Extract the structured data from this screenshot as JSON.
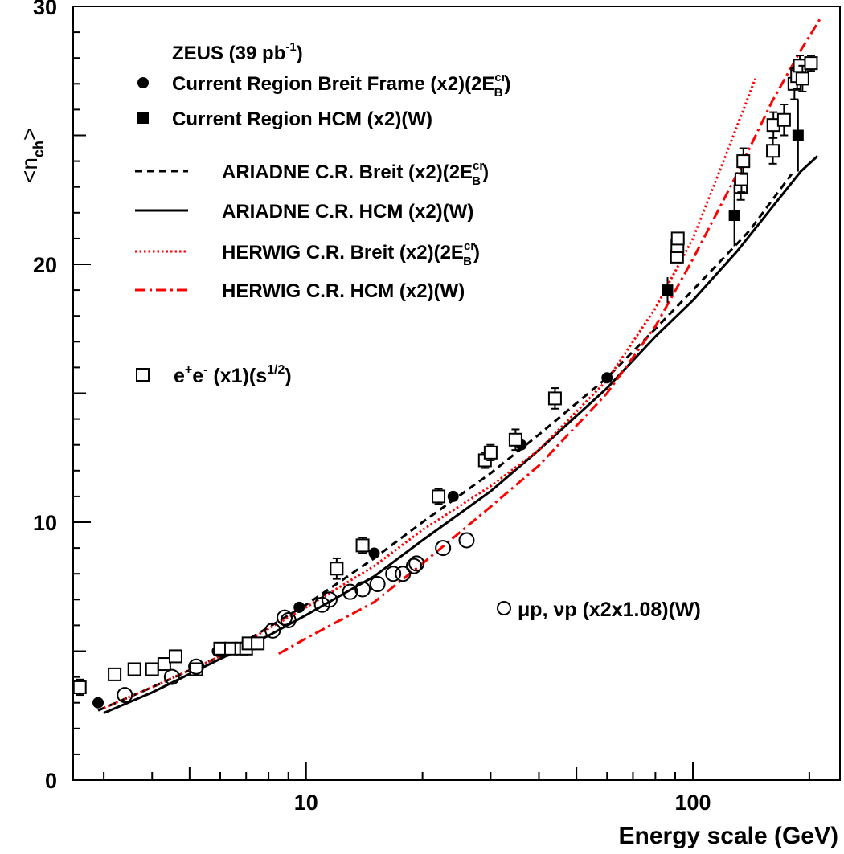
{
  "chart_data": {
    "type": "scatter",
    "title": "",
    "xlabel": "Energy scale (GeV)",
    "ylabel": "<n_ch>",
    "x_scale": "log",
    "xlim": [
      2.5,
      240
    ],
    "ylim": [
      0,
      30
    ],
    "x_ticks": [
      10,
      100
    ],
    "y_ticks": [
      0,
      10,
      20,
      30
    ],
    "grid": false,
    "legend_placement": "top-left",
    "experiment_label": {
      "main": "ZEUS (39 pb",
      "sup": "-1",
      "end": ")"
    },
    "legend": [
      {
        "key": "breit",
        "marker": "filled-circle",
        "main": "Current Region Breit Frame (x2)(2E",
        "sup": "cr",
        "sub": "B",
        "end": ")"
      },
      {
        "key": "hcm",
        "marker": "filled-square",
        "main": "Current Region HCM (x2)(W)",
        "sup": "",
        "sub": "",
        "end": ""
      },
      {
        "key": "ariadne_breit",
        "marker": "dashed-black",
        "main": "ARIADNE C.R. Breit (x2)(2E",
        "sup": "cr",
        "sub": "B",
        "end": ")"
      },
      {
        "key": "ariadne_hcm",
        "marker": "solid-black",
        "main": "ARIADNE C.R. HCM (x2)(W)",
        "sup": "",
        "sub": "",
        "end": ""
      },
      {
        "key": "herwig_breit",
        "marker": "dotted-red",
        "main": "HERWIG C.R. Breit (x2)(2E",
        "sup": "cr",
        "sub": "B",
        "end": ")"
      },
      {
        "key": "herwig_hcm",
        "marker": "dashdot-red",
        "main": "HERWIG C.R. HCM (x2)(W)",
        "sup": "",
        "sub": "",
        "end": ""
      }
    ],
    "ee_legend": {
      "p1": "e",
      "s1": "+",
      "p2": "e",
      "s2": "-",
      "p3": " (x1)(s",
      "s3": "1/2",
      "p4": ")"
    },
    "mu_legend": "μp, νp (x2x1.08)(W)",
    "colors": {
      "axis": "#000000",
      "data": "#000000",
      "herwig": "#ff0000"
    },
    "series": [
      {
        "key": "breit",
        "name": "Current Region Breit Frame (x2)(2E_B^cr)",
        "marker": "filled-circle",
        "points": [
          [
            2.9,
            3.0
          ],
          [
            5.9,
            5.0
          ],
          [
            9.6,
            6.7
          ],
          [
            15.0,
            8.8
          ],
          [
            24.0,
            11.0
          ],
          [
            36.0,
            13.0
          ],
          [
            60.0,
            15.6
          ]
        ],
        "errors": [
          0.1,
          0.1,
          0.1,
          0.15,
          0.15,
          0.2,
          0.15
        ]
      },
      {
        "key": "hcm",
        "name": "Current Region HCM (x2)(W)",
        "marker": "filled-square",
        "points": [
          [
            6.1,
            5.0
          ],
          [
            86.0,
            19.0
          ],
          [
            128.0,
            21.9
          ],
          [
            187.0,
            25.0
          ]
        ],
        "errors": [
          0.1,
          0.5,
          1.2,
          1.4
        ]
      },
      {
        "key": "ee",
        "name": "e+e- (x1)(s1/2)",
        "marker": "open-square",
        "points": [
          [
            2.6,
            3.6
          ],
          [
            3.2,
            4.1
          ],
          [
            3.6,
            4.3
          ],
          [
            4.0,
            4.3
          ],
          [
            4.3,
            4.5
          ],
          [
            4.6,
            4.8
          ],
          [
            5.2,
            4.3
          ],
          [
            6.0,
            5.1
          ],
          [
            6.4,
            5.1
          ],
          [
            6.8,
            5.1
          ],
          [
            7.0,
            5.1
          ],
          [
            7.1,
            5.3
          ],
          [
            7.5,
            5.3
          ],
          [
            12.0,
            8.2
          ],
          [
            14.0,
            9.1
          ],
          [
            22.0,
            11.0
          ],
          [
            29.0,
            12.4
          ],
          [
            30.0,
            12.7
          ],
          [
            34.8,
            13.2
          ],
          [
            44.0,
            14.8
          ],
          [
            91.0,
            20.3
          ],
          [
            91.2,
            20.7
          ],
          [
            91.4,
            21.0
          ],
          [
            133.0,
            23.0
          ],
          [
            133.5,
            23.3
          ],
          [
            135.0,
            24.0
          ],
          [
            161.0,
            24.4
          ],
          [
            161.5,
            25.4
          ],
          [
            172.0,
            25.6
          ],
          [
            183.0,
            27.0
          ],
          [
            186.0,
            27.3
          ],
          [
            189.0,
            27.7
          ],
          [
            192.0,
            27.2
          ],
          [
            202.0,
            27.8
          ]
        ],
        "errors": [
          0.3,
          0.1,
          0.1,
          0.1,
          0.1,
          0.2,
          0.1,
          0.1,
          0.1,
          0.1,
          0.1,
          0.1,
          0.1,
          0.4,
          0.3,
          0.3,
          0.3,
          0.3,
          0.4,
          0.4,
          0.2,
          0.2,
          0.2,
          0.5,
          0.5,
          0.5,
          0.5,
          0.5,
          0.6,
          0.6,
          0.5,
          0.4,
          0.5,
          0.3
        ]
      },
      {
        "key": "mup",
        "name": "μp, νp (x2x1.08)(W)",
        "marker": "open-circle",
        "points": [
          [
            3.4,
            3.3
          ],
          [
            4.5,
            4.0
          ],
          [
            5.2,
            4.4
          ],
          [
            8.2,
            5.8
          ],
          [
            8.8,
            6.3
          ],
          [
            9.0,
            6.2
          ],
          [
            11.0,
            6.8
          ],
          [
            11.5,
            7.0
          ],
          [
            13.0,
            7.3
          ],
          [
            14.0,
            7.4
          ],
          [
            15.3,
            7.6
          ],
          [
            16.8,
            8.0
          ],
          [
            17.8,
            8.0
          ],
          [
            19.0,
            8.3
          ],
          [
            19.3,
            8.4
          ],
          [
            22.6,
            9.0
          ],
          [
            26.0,
            9.3
          ]
        ]
      }
    ],
    "curves": [
      {
        "key": "ariadne_breit",
        "name": "ARIADNE C.R. Breit (x2)(2E_B^cr)",
        "style": "dashed",
        "color": "#000000",
        "points": [
          [
            2.9,
            2.7
          ],
          [
            4.0,
            3.6
          ],
          [
            6.0,
            4.8
          ],
          [
            10.0,
            6.8
          ],
          [
            15.0,
            8.6
          ],
          [
            20.0,
            10.0
          ],
          [
            30.0,
            11.9
          ],
          [
            40.0,
            13.4
          ],
          [
            60.0,
            15.6
          ],
          [
            80.0,
            17.5
          ],
          [
            100.0,
            19.0
          ],
          [
            140.0,
            21.3
          ],
          [
            180.0,
            23.5
          ]
        ]
      },
      {
        "key": "ariadne_hcm",
        "name": "ARIADNE C.R. HCM (x2)(W)",
        "style": "solid",
        "color": "#000000",
        "points": [
          [
            3.0,
            2.6
          ],
          [
            4.0,
            3.4
          ],
          [
            6.0,
            4.7
          ],
          [
            8.0,
            5.6
          ],
          [
            10.0,
            6.4
          ],
          [
            15.0,
            7.9
          ],
          [
            20.0,
            9.3
          ],
          [
            30.0,
            11.2
          ],
          [
            40.0,
            12.8
          ],
          [
            60.0,
            15.2
          ],
          [
            80.0,
            17.2
          ],
          [
            100.0,
            18.6
          ],
          [
            130.0,
            20.5
          ],
          [
            160.0,
            22.2
          ],
          [
            190.0,
            23.6
          ],
          [
            210.0,
            24.2
          ]
        ]
      },
      {
        "key": "herwig_breit",
        "name": "HERWIG C.R. Breit (x2)(2E_B^cr)",
        "style": "dotted",
        "color": "#ff0000",
        "points": [
          [
            3.0,
            2.8
          ],
          [
            4.0,
            3.6
          ],
          [
            6.0,
            4.8
          ],
          [
            10.0,
            6.7
          ],
          [
            15.0,
            8.3
          ],
          [
            20.0,
            9.7
          ],
          [
            30.0,
            11.4
          ],
          [
            40.0,
            12.8
          ],
          [
            60.0,
            15.5
          ],
          [
            80.0,
            18.3
          ],
          [
            100.0,
            21.0
          ],
          [
            120.0,
            24.0
          ],
          [
            145.0,
            27.2
          ]
        ]
      },
      {
        "key": "herwig_hcm",
        "name": "HERWIG C.R. HCM (x2)(W)",
        "style": "dashdot",
        "color": "#ff0000",
        "points": [
          [
            8.5,
            4.9
          ],
          [
            10.0,
            5.5
          ],
          [
            15.0,
            6.9
          ],
          [
            20.0,
            8.4
          ],
          [
            30.0,
            10.6
          ],
          [
            40.0,
            12.2
          ],
          [
            60.0,
            15.0
          ],
          [
            80.0,
            17.6
          ],
          [
            100.0,
            20.2
          ],
          [
            130.0,
            23.5
          ],
          [
            160.0,
            26.3
          ],
          [
            190.0,
            28.3
          ],
          [
            215.0,
            29.6
          ]
        ]
      }
    ]
  }
}
